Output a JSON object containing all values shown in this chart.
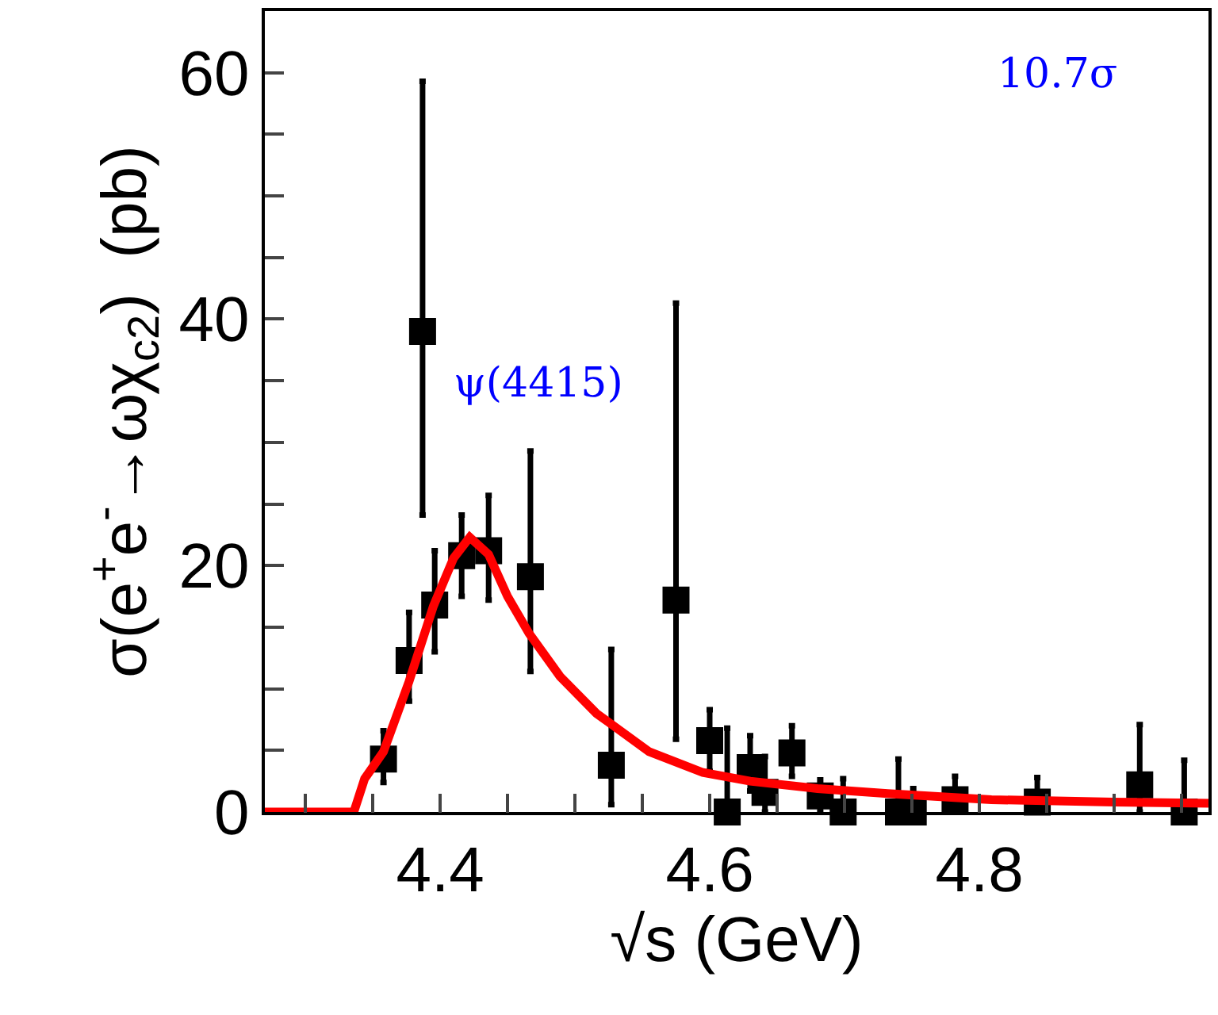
{
  "chart_data": {
    "type": "scatter",
    "xlabel": "√s (GeV)",
    "ylabel": "σ(e$^{+}$e$^{-}$→ωχ$_{c2}$)  (pb)",
    "xlim": [
      4.27,
      4.97
    ],
    "ylim": [
      0,
      65
    ],
    "xticks": [
      {
        "value": 4.3,
        "label": null
      },
      {
        "value": 4.35,
        "label": null
      },
      4.4,
      {
        "value": 4.45,
        "label": null
      },
      {
        "value": 4.5,
        "label": null
      },
      {
        "value": 4.55,
        "label": null
      },
      4.6,
      {
        "value": 4.65,
        "label": null
      },
      {
        "value": 4.7,
        "label": null
      },
      {
        "value": 4.75,
        "label": null
      },
      4.8,
      {
        "value": 4.85,
        "label": null
      },
      {
        "value": 4.9,
        "label": null
      },
      {
        "value": 4.95,
        "label": null
      }
    ],
    "yticks": [
      0,
      {
        "value": 5,
        "label": null
      },
      {
        "value": 10,
        "label": null
      },
      {
        "value": 15,
        "label": null
      },
      20,
      {
        "value": 25,
        "label": null
      },
      {
        "value": 30,
        "label": null
      },
      {
        "value": 35,
        "label": null
      },
      40,
      {
        "value": 45,
        "label": null
      },
      {
        "value": 50,
        "label": null
      },
      {
        "value": 55,
        "label": null
      },
      60
    ],
    "series": [
      {
        "color": "#000000",
        "marker": "square",
        "x": [
          4.358,
          4.377,
          4.387,
          4.396,
          4.416,
          4.436,
          4.467,
          4.527,
          4.575,
          4.6,
          4.613,
          4.63,
          4.641,
          4.661,
          4.682,
          4.699,
          4.74,
          4.751,
          4.782,
          4.843,
          4.919,
          4.952
        ],
        "values": [
          4.3,
          12.3,
          39.0,
          16.8,
          20.8,
          21.2,
          19.1,
          3.8,
          17.2,
          5.8,
          0.0,
          3.6,
          1.6,
          4.8,
          1.3,
          0.0,
          0.0,
          0.0,
          1.0,
          0.8,
          2.2,
          0.0
        ],
        "errors": [
          [
            2.4,
            6.6
          ],
          [
            9.0,
            16.2
          ],
          [
            24.1,
            59.3
          ],
          [
            13.0,
            21.2
          ],
          [
            17.5,
            24.1
          ],
          [
            17.2,
            25.7
          ],
          [
            11.4,
            29.3
          ],
          [
            0.6,
            13.2
          ],
          [
            5.9,
            41.3
          ],
          [
            3.3,
            8.3
          ],
          [
            0.0,
            6.8
          ],
          [
            1.7,
            6.2
          ],
          [
            0.0,
            4.5
          ],
          [
            2.9,
            7.0
          ],
          [
            0.0,
            2.6
          ],
          [
            0.0,
            2.7
          ],
          [
            0.0,
            4.3
          ],
          [
            0.0,
            1.9
          ],
          [
            0.0,
            2.9
          ],
          [
            0.0,
            2.8
          ],
          [
            0.0,
            7.1
          ],
          [
            0.0,
            4.2
          ]
        ]
      },
      {
        "type": "line",
        "color": "#ff0000",
        "marker": "none",
        "line_style": "solid",
        "x": [
          4.27,
          4.336,
          4.344,
          4.358,
          4.377,
          4.395,
          4.41,
          4.422,
          4.436,
          4.45,
          4.466,
          4.489,
          4.516,
          4.555,
          4.595,
          4.63,
          4.68,
          4.732,
          4.809,
          4.9,
          4.97
        ],
        "values": [
          0.0,
          0.0,
          2.7,
          4.9,
          10.6,
          16.7,
          20.6,
          22.3,
          20.9,
          17.5,
          14.5,
          11.0,
          8.0,
          4.9,
          3.2,
          2.5,
          1.9,
          1.5,
          1.0,
          0.8,
          0.7
        ]
      }
    ],
    "annotations": [
      "ψ(4415)",
      "10.7σ"
    ]
  }
}
